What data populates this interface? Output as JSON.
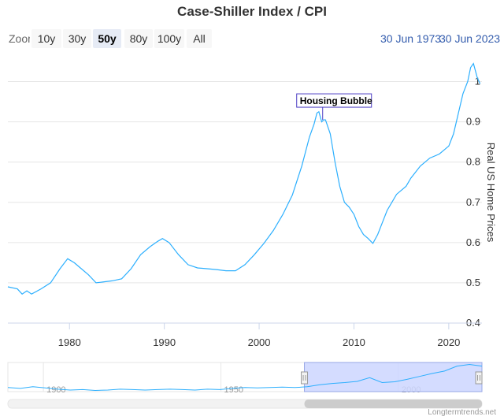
{
  "title": "Case-Shiller Index / CPI",
  "range_selector": {
    "label": "Zoom",
    "buttons": [
      "10y",
      "30y",
      "50y",
      "80y",
      "100y",
      "All"
    ],
    "selected": "50y"
  },
  "date_range": {
    "from": "30 Jun 1973",
    "to": "30 Jun 2023"
  },
  "credit": "Longtermtrends.net",
  "colors": {
    "line": "#2caffe",
    "navigator_mask": "#ccd6ff",
    "annotation_border": "#4d3fc4"
  },
  "chart_data": {
    "type": "line",
    "title": "Case-Shiller Index / CPI",
    "ylabel": "Real US Home Prices",
    "xlim": [
      1973.5,
      2023.5
    ],
    "ylim": [
      0.4,
      1.05
    ],
    "x_ticks": [
      "1980",
      "1990",
      "2000",
      "2010",
      "2020"
    ],
    "y_ticks": [
      "0.4",
      "0.5",
      "0.6",
      "0.7",
      "0.8",
      "0.9",
      "1"
    ],
    "annotation": {
      "text": "Housing Bubble",
      "x": 2006.7,
      "y": 0.905
    },
    "series": [
      {
        "x": [
          1973.5,
          1974.5,
          1975.0,
          1975.5,
          1976.0,
          1977.0,
          1978.0,
          1979.0,
          1979.8,
          1980.5,
          1981.0,
          1982.0,
          1982.8,
          1983.5,
          1984.5,
          1985.5,
          1986.5,
          1987.5,
          1988.5,
          1989.3,
          1989.8,
          1990.5,
          1991.5,
          1992.5,
          1993.5,
          1994.5,
          1995.5,
          1996.5,
          1997.5,
          1998.5,
          1999.5,
          2000.5,
          2001.5,
          2002.5,
          2003.5,
          2004.5,
          2005.3,
          2005.8,
          2006.1,
          2006.3,
          2006.6,
          2006.8,
          2007.0,
          2007.5,
          2008.0,
          2008.5,
          2009.0,
          2009.5,
          2010.0,
          2010.5,
          2011.0,
          2011.5,
          2012.0,
          2012.5,
          2013.0,
          2013.5,
          2014.0,
          2014.5,
          2015.0,
          2015.5,
          2016.0,
          2017.0,
          2018.0,
          2019.0,
          2019.5,
          2020.0,
          2020.5,
          2021.0,
          2021.5,
          2022.0,
          2022.3,
          2022.6,
          2023.0,
          2023.3
        ],
        "y": [
          0.49,
          0.485,
          0.472,
          0.48,
          0.472,
          0.485,
          0.5,
          0.535,
          0.56,
          0.55,
          0.54,
          0.52,
          0.5,
          0.502,
          0.505,
          0.51,
          0.535,
          0.57,
          0.59,
          0.603,
          0.61,
          0.6,
          0.57,
          0.545,
          0.537,
          0.535,
          0.533,
          0.53,
          0.53,
          0.545,
          0.57,
          0.598,
          0.63,
          0.67,
          0.718,
          0.79,
          0.862,
          0.895,
          0.922,
          0.925,
          0.9,
          0.905,
          0.905,
          0.87,
          0.8,
          0.74,
          0.7,
          0.688,
          0.67,
          0.64,
          0.62,
          0.61,
          0.598,
          0.62,
          0.65,
          0.68,
          0.7,
          0.72,
          0.73,
          0.74,
          0.76,
          0.79,
          0.81,
          0.82,
          0.83,
          0.84,
          0.87,
          0.92,
          0.97,
          1.0,
          1.035,
          1.045,
          1.01,
          0.995
        ]
      }
    ]
  },
  "navigator": {
    "x_ticks": [
      "1900",
      "1950",
      "2000"
    ],
    "xlim": [
      1890,
      2023.5
    ],
    "selected_from": 1973.5,
    "selected_to": 2023.5,
    "y": [
      0.48,
      0.46,
      0.5,
      0.47,
      0.44,
      0.42,
      0.43,
      0.41,
      0.42,
      0.44,
      0.43,
      0.42,
      0.43,
      0.44,
      0.43,
      0.42,
      0.44,
      0.43,
      0.46,
      0.48,
      0.47,
      0.48,
      0.49,
      0.48,
      0.5,
      0.55,
      0.58,
      0.6,
      0.63,
      0.72,
      0.6,
      0.62,
      0.68,
      0.75,
      0.82,
      0.88,
      1.0,
      1.04,
      1.0
    ]
  }
}
